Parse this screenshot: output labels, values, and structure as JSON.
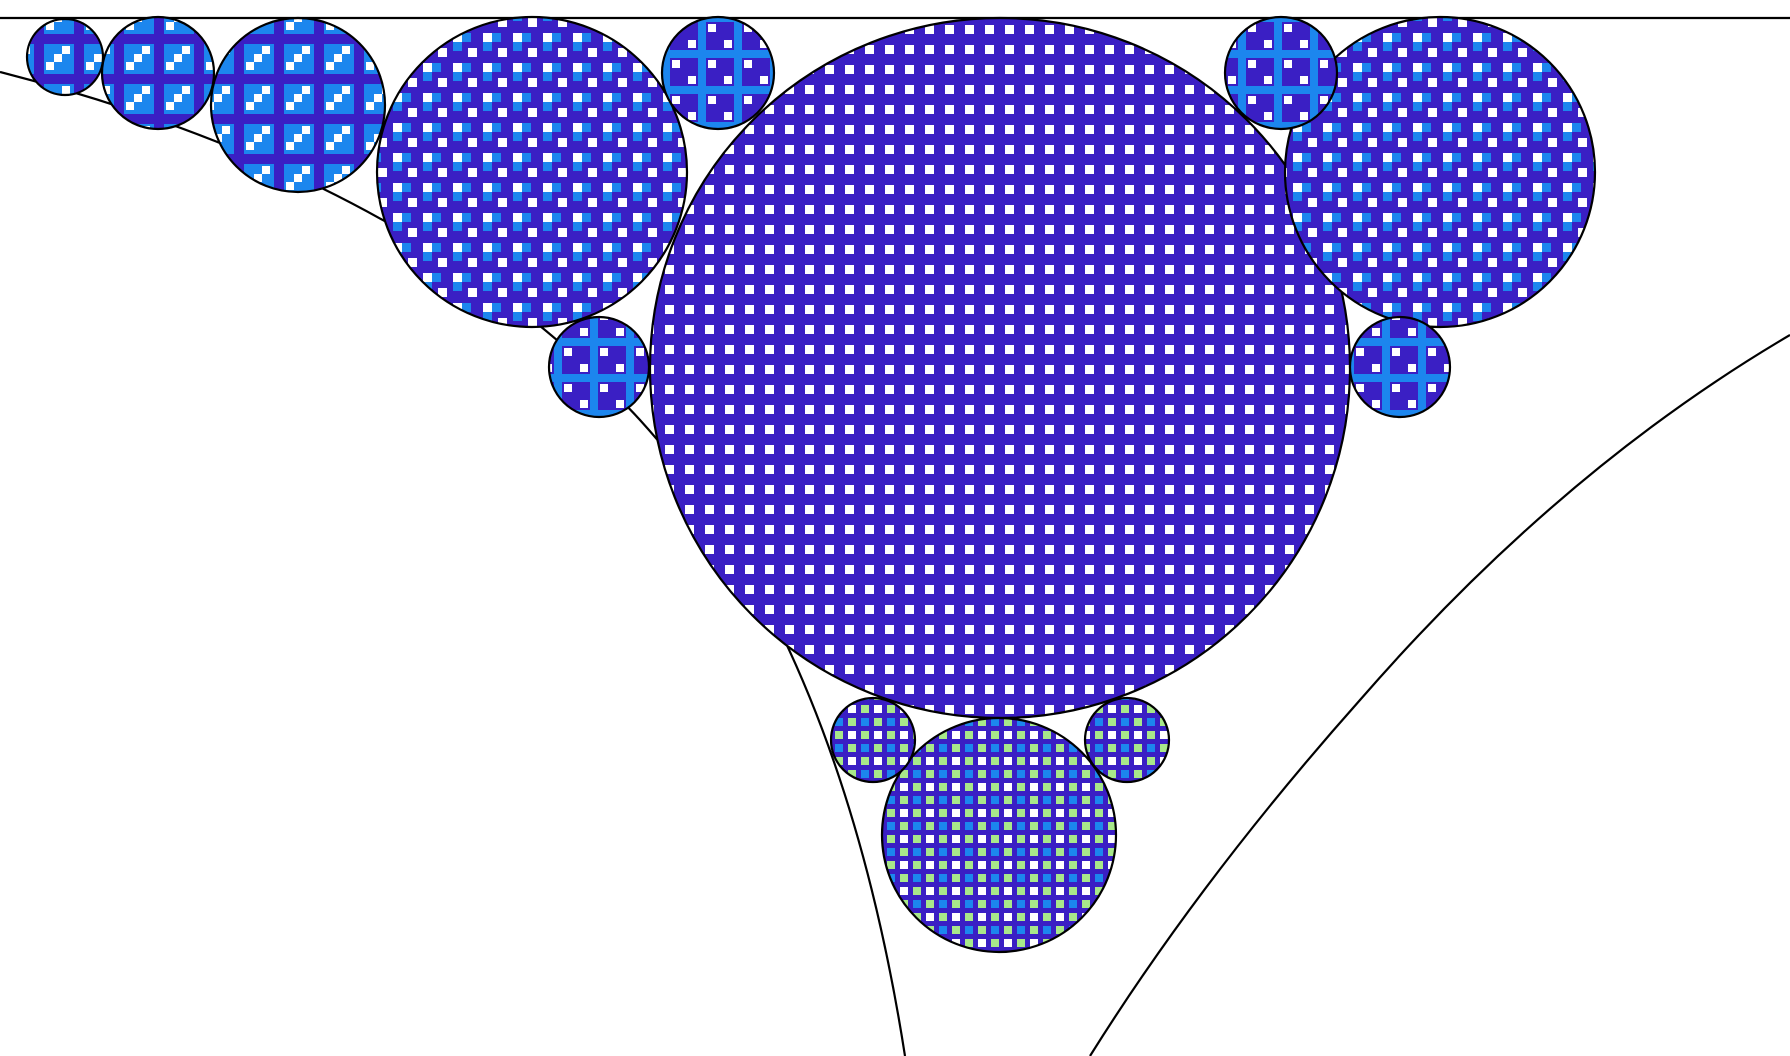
{
  "colors": {
    "background": "#ffffff",
    "outline": "#000000",
    "indigo": "#3a1fc4",
    "blue": "#1c86ee",
    "white": "#ffffff",
    "green": "#a8e88a"
  },
  "patterns": [
    {
      "name": "pattern-fine-squares"
    },
    {
      "name": "pattern-blue-checker"
    },
    {
      "name": "pattern-blue-weave"
    },
    {
      "name": "pattern-blue-cross"
    },
    {
      "name": "pattern-green-dots"
    }
  ]
}
